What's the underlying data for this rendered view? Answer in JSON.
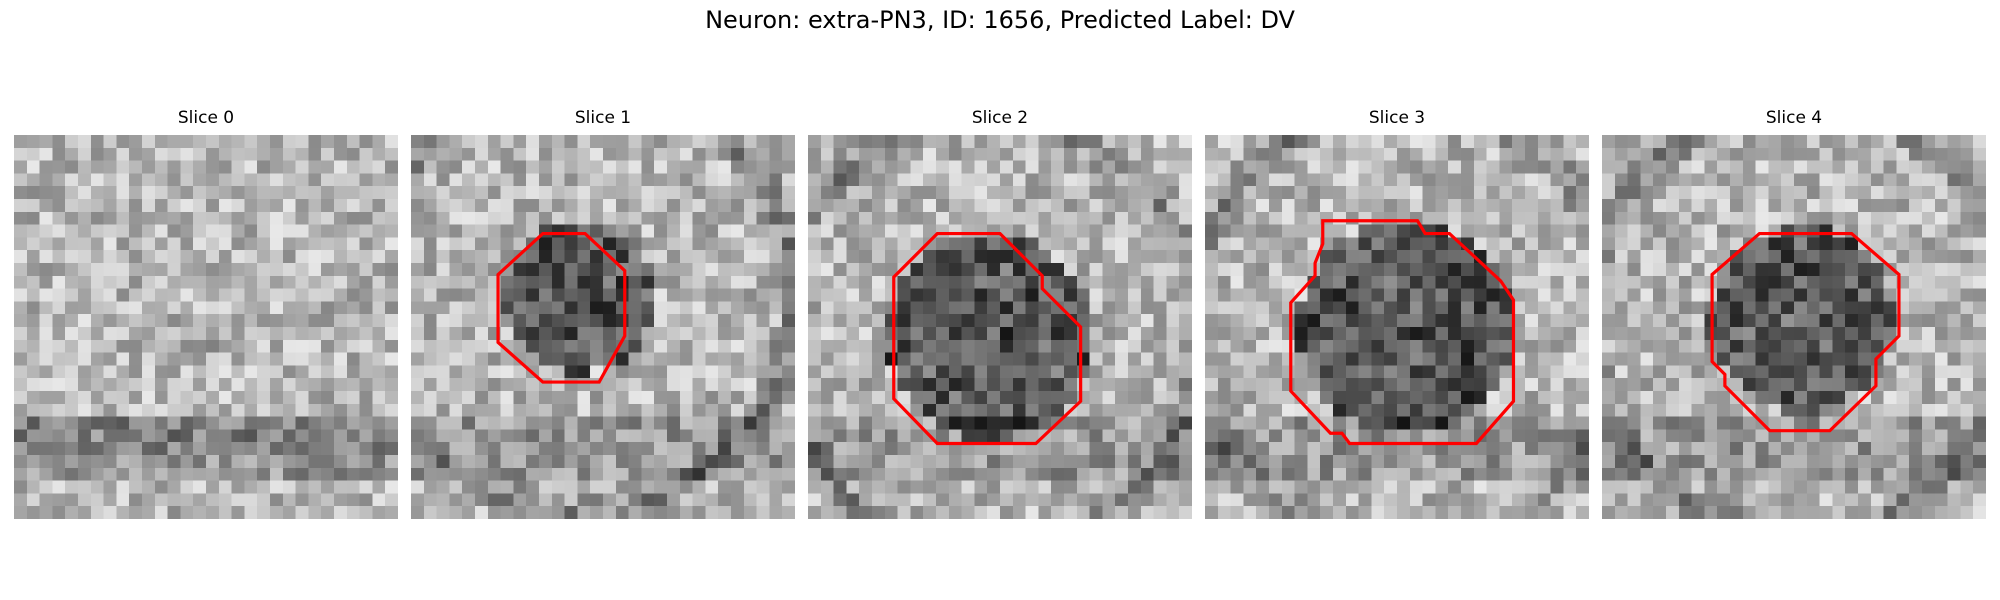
{
  "figure": {
    "title": "Neuron: extra-PN3, ID: 1656, Predicted Label: DV",
    "contour_color": "#ff0000",
    "colormap": "gray",
    "slices": [
      {
        "title": "Slice 0",
        "has_contour": false,
        "cell_center": [
          0.5,
          0.55
        ],
        "cell_radius": 0.0,
        "ring_radius": 0.0,
        "seed": 11
      },
      {
        "title": "Slice 1",
        "has_contour": true,
        "cell_center": [
          0.44,
          0.42
        ],
        "cell_radius": 0.2,
        "ring_radius": 0.62,
        "seed": 23
      },
      {
        "title": "Slice 2",
        "has_contour": true,
        "cell_center": [
          0.47,
          0.52
        ],
        "cell_radius": 0.27,
        "ring_radius": 0.62,
        "seed": 37
      },
      {
        "title": "Slice 3",
        "has_contour": true,
        "cell_center": [
          0.52,
          0.5
        ],
        "cell_radius": 0.28,
        "ring_radius": 0.63,
        "seed": 41
      },
      {
        "title": "Slice 4",
        "has_contour": true,
        "cell_center": [
          0.52,
          0.48
        ],
        "cell_radius": 0.24,
        "ring_radius": 0.62,
        "seed": 53
      }
    ]
  }
}
